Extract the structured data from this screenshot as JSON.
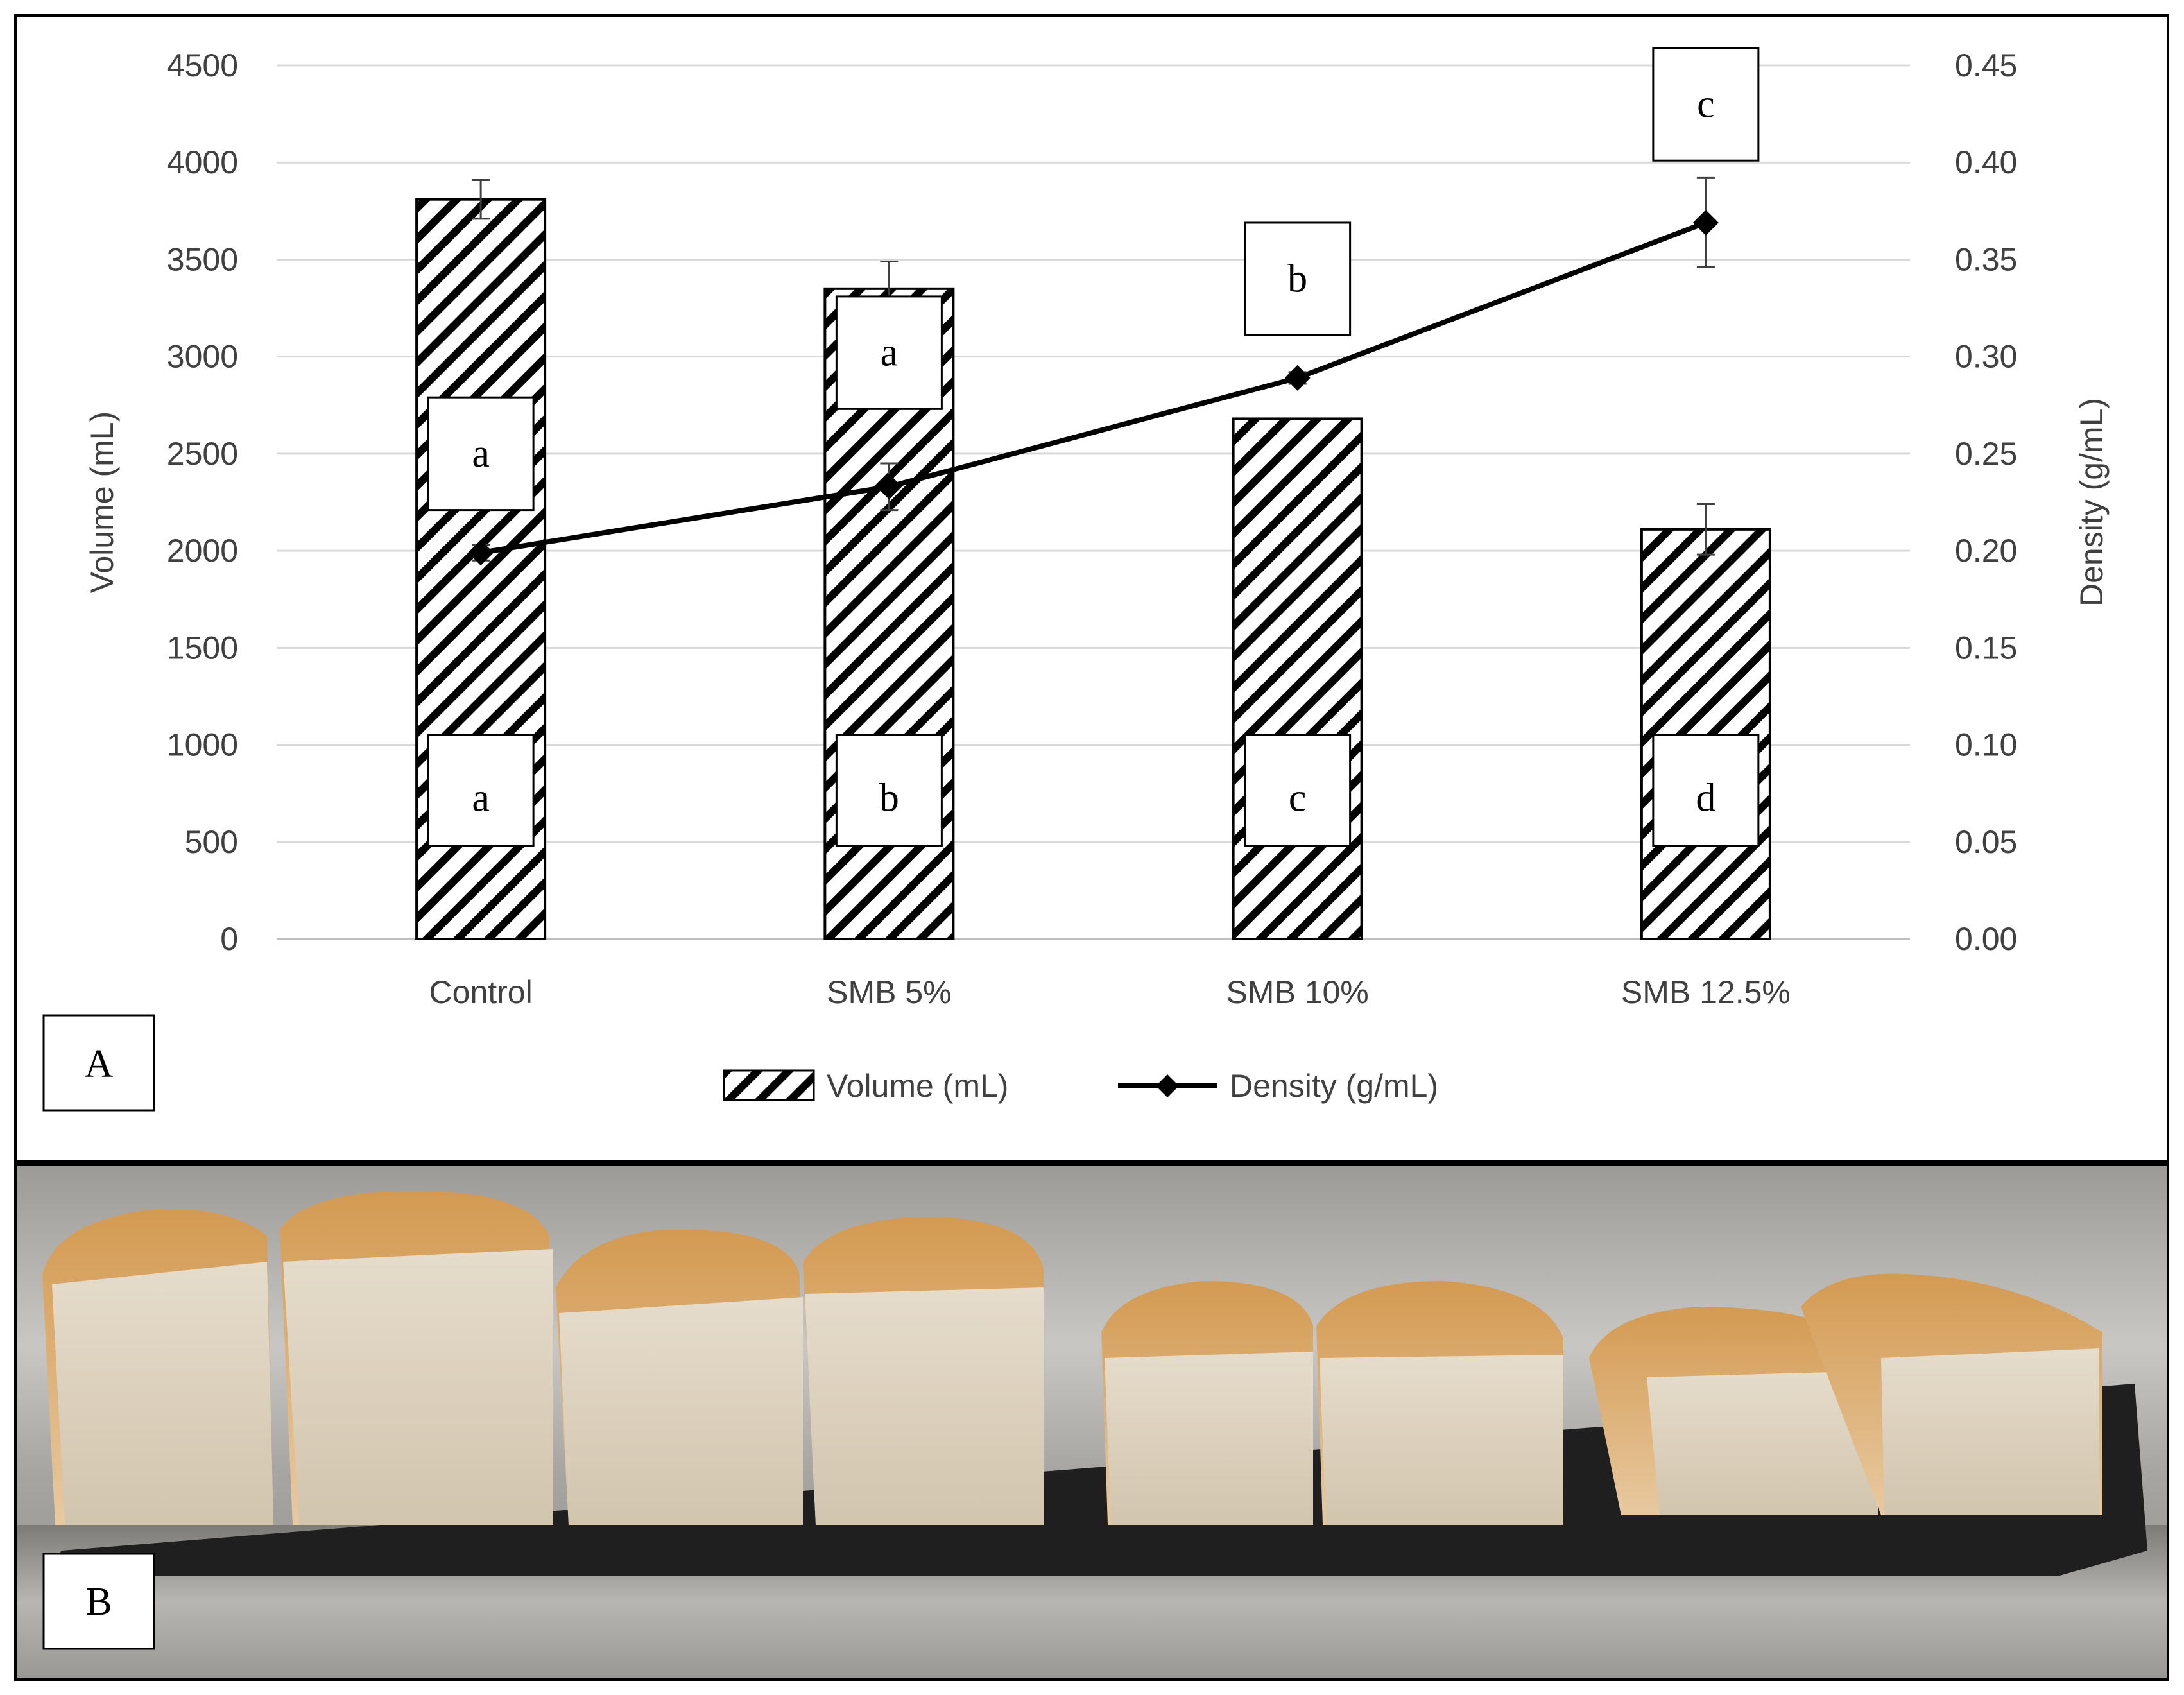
{
  "chart_data": {
    "type": "bar",
    "categories": [
      "Control",
      "SMB 5%",
      "SMB 10%",
      "SMB 12.5%"
    ],
    "series": [
      {
        "name": "Volume (mL)",
        "kind": "bar",
        "axis": "left",
        "values": [
          3810,
          3350,
          2680,
          2110
        ],
        "error": [
          100,
          140,
          0,
          130
        ],
        "letters": [
          "a",
          "b",
          "c",
          "d"
        ]
      },
      {
        "name": "Density (g/mL)",
        "kind": "line",
        "axis": "right",
        "values": [
          0.199,
          0.233,
          0.289,
          0.369
        ],
        "error": [
          0.004,
          0.012,
          0.003,
          0.023
        ],
        "letters": [
          "a",
          "a",
          "b",
          "c"
        ]
      }
    ],
    "ylabel": "Volume (mL)",
    "y2label": "Density (g/mL)",
    "ylim": [
      0,
      4500
    ],
    "y2lim": [
      0,
      0.45
    ],
    "yticks": [
      "0",
      "500",
      "1000",
      "1500",
      "2000",
      "2500",
      "3000",
      "3500",
      "4000",
      "4500"
    ],
    "y2ticks": [
      "0.00",
      "0.05",
      "0.10",
      "0.15",
      "0.20",
      "0.25",
      "0.30",
      "0.35",
      "0.40",
      "0.45"
    ],
    "grid": true,
    "legend": "bottom-center"
  },
  "panel_labels": {
    "a": "A",
    "b": "B"
  },
  "colors": {
    "grid": "#d9d9d9",
    "text": "#404040",
    "line": "#000000"
  }
}
